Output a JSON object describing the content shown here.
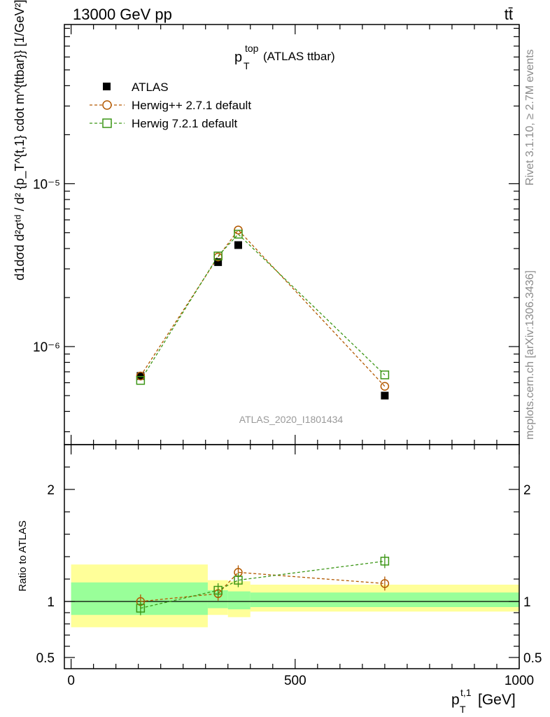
{
  "header": {
    "left": "13000 GeV pp",
    "right": "tt̄"
  },
  "side_labels": {
    "rivet": "Rivet 3.1.10, ≥ 2.7M events",
    "mcplots": "mcplots.cern.ch [arXiv:1306.3436]"
  },
  "chart_data": [
    {
      "type": "scatter",
      "panel": "main",
      "title": "(ATLAS ttbar)",
      "title_var": "p",
      "title_sup": "top",
      "title_sub": "T",
      "watermark": "ATLAS_2020_I1801434",
      "ylabel": "d1dσd d²σᵗᵈ / d² {p_T^{t,1} cdot m^{ttbar}} [1/GeV²]",
      "ylog": true,
      "xlim": [
        -15,
        1000
      ],
      "ylim": [
        2.5e-07,
        9.5e-05
      ],
      "y_major_ticks": [
        1e-06,
        1e-05
      ],
      "y_tick_labels": [
        "10⁻⁶",
        "10⁻⁵"
      ],
      "legend_placement": "top-left",
      "series": [
        {
          "name": "ATLAS",
          "marker": "filled-square",
          "color": "#000000",
          "x": [
            155,
            328,
            373,
            700
          ],
          "y": [
            6.6e-07,
            3.3e-06,
            4.2e-06,
            5e-07
          ]
        },
        {
          "name": "Herwig++ 2.7.1 default",
          "marker": "open-circle",
          "color": "#b35900",
          "line": "dashed",
          "x": [
            155,
            328,
            373,
            700
          ],
          "y": [
            6.6e-07,
            3.55e-06,
            5.2e-06,
            5.7e-07
          ]
        },
        {
          "name": "Herwig 7.2.1 default",
          "marker": "open-square",
          "color": "#3c9616",
          "line": "dashed",
          "x": [
            155,
            328,
            373,
            700
          ],
          "y": [
            6.2e-07,
            3.6e-06,
            4.9e-06,
            6.7e-07
          ]
        }
      ]
    },
    {
      "type": "scatter",
      "panel": "ratio",
      "ylabel": "Ratio to ATLAS",
      "xlabel_var": "p",
      "xlabel_sup": "t,1",
      "xlabel_sub": "T",
      "xlabel_unit": "[GeV]",
      "ylim": [
        0.4,
        2.4
      ],
      "y_major_ticks": [
        0.5,
        1,
        2
      ],
      "y_tick_labels": [
        "0.5",
        "1",
        "2"
      ],
      "x_major_ticks": [
        0,
        500,
        1000
      ],
      "x_tick_labels": [
        "0",
        "500",
        "1000"
      ],
      "bands": [
        {
          "x0": 0,
          "x1": 305,
          "yellow": [
            0.77,
            1.33
          ],
          "green": [
            0.88,
            1.17
          ]
        },
        {
          "x0": 305,
          "x1": 350,
          "yellow": [
            0.88,
            1.19
          ],
          "green": [
            0.94,
            1.1
          ]
        },
        {
          "x0": 350,
          "x1": 400,
          "yellow": [
            0.86,
            1.18
          ],
          "green": [
            0.93,
            1.09
          ]
        },
        {
          "x0": 400,
          "x1": 1000,
          "yellow": [
            0.91,
            1.15
          ],
          "green": [
            0.95,
            1.08
          ]
        }
      ],
      "series": [
        {
          "name": "Herwig++ 2.7.1 default",
          "x": [
            155,
            328,
            373,
            700
          ],
          "y": [
            1.0,
            1.07,
            1.26,
            1.16
          ]
        },
        {
          "name": "Herwig 7.2.1 default",
          "x": [
            155,
            328,
            373,
            700
          ],
          "y": [
            0.94,
            1.1,
            1.19,
            1.36
          ]
        }
      ]
    }
  ]
}
